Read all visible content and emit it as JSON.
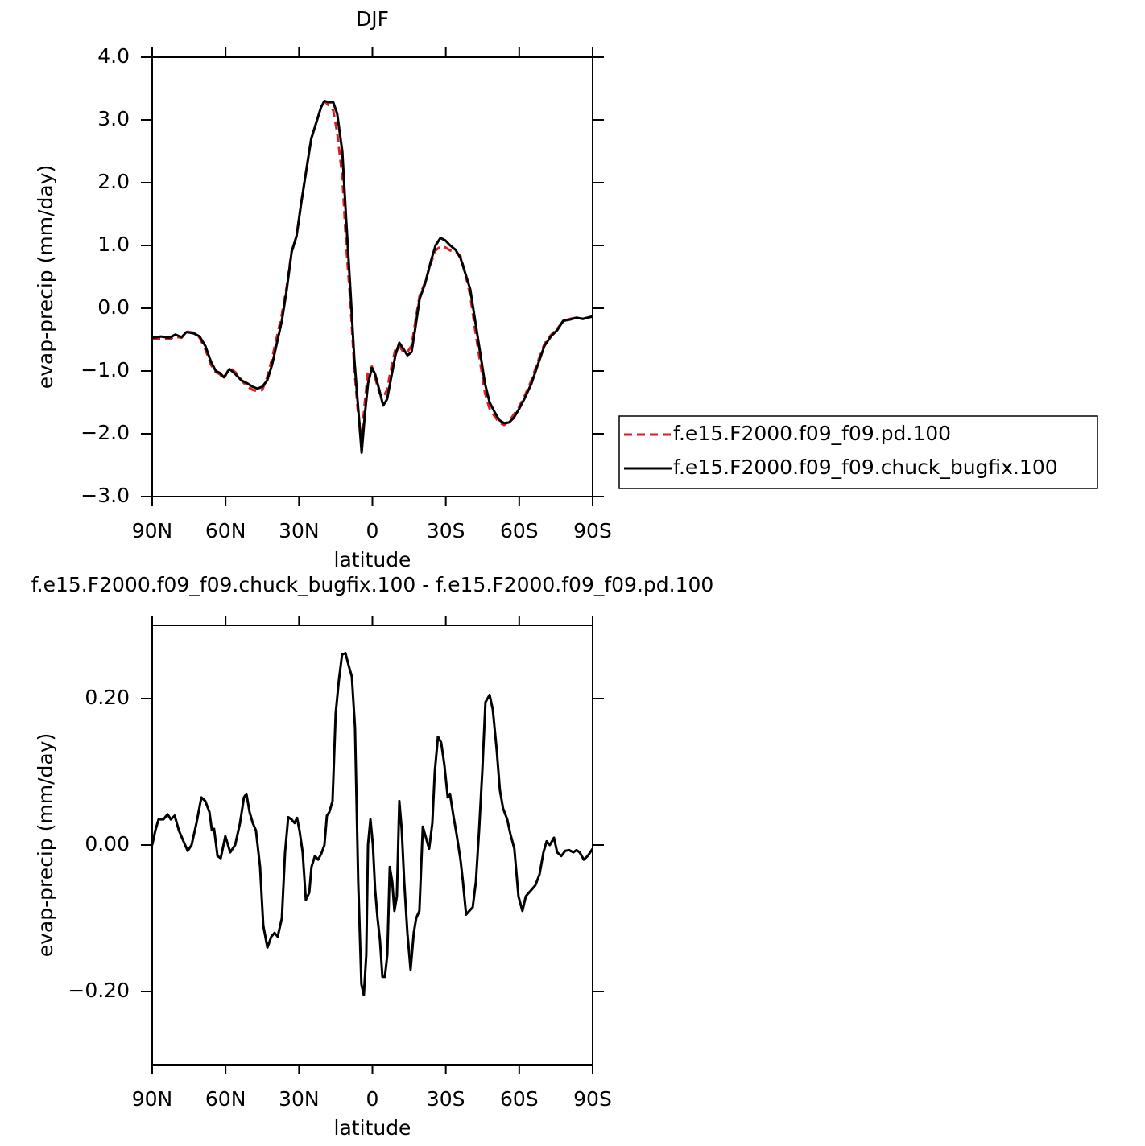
{
  "chart_data": [
    {
      "type": "line",
      "title": "DJF",
      "xlabel": "latitude",
      "ylabel": "evap-precip (mm/day)",
      "xlim": [
        90,
        -90
      ],
      "xticks": [
        {
          "value": 90,
          "label": "90N"
        },
        {
          "value": 60,
          "label": "60N"
        },
        {
          "value": 30,
          "label": "30N"
        },
        0,
        {
          "value": -30,
          "label": "30S"
        },
        {
          "value": -60,
          "label": "60S"
        },
        {
          "value": -90,
          "label": "90S"
        }
      ],
      "ylim": [
        -3,
        4
      ],
      "yticks": [
        {
          "value": 4,
          "label": "4.0"
        },
        {
          "value": 3,
          "label": "3.0"
        },
        {
          "value": 2,
          "label": "2.0"
        },
        {
          "value": 1,
          "label": "1.0"
        },
        {
          "value": 0,
          "label": "0.0"
        },
        {
          "value": -1,
          "label": "−1.0"
        },
        {
          "value": -2,
          "label": "−2.0"
        },
        {
          "value": -3,
          "label": "−3.0"
        }
      ],
      "legend": "right",
      "x": [
        90,
        86.4,
        83,
        80.5,
        78,
        76,
        73,
        70.6,
        68.3,
        66,
        64,
        62.4,
        60.7,
        58.4,
        56,
        53.5,
        51,
        49,
        47,
        45,
        43,
        41,
        39,
        37,
        35,
        33,
        31,
        29,
        27,
        25,
        23,
        21,
        19.6,
        17.6,
        16,
        14.4,
        12.3,
        10.7,
        9,
        7.4,
        5.8,
        4.4,
        3.1,
        1.8,
        0.2,
        -1.1,
        -2.8,
        -4.4,
        -6,
        -7.7,
        -9.4,
        -11,
        -12.7,
        -14.3,
        -16,
        -17.6,
        -19.3,
        -21.6,
        -23.9,
        -25.8,
        -27.8,
        -29.8,
        -31.8,
        -34,
        -36,
        -38,
        -40,
        -42,
        -44,
        -46,
        -47.9,
        -49.9,
        -51.8,
        -53.8,
        -55.8,
        -57.7,
        -60,
        -62.4,
        -65,
        -67.6,
        -70.3,
        -72.9,
        -75.5,
        -78,
        -80.8,
        -83.4,
        -86,
        -90
      ],
      "series": [
        {
          "name": "f.e15.F2000.f09_f09.pd.100",
          "color": "#e41a1c",
          "dashed": true,
          "values": [
            -0.48,
            -0.48,
            -0.49,
            -0.45,
            -0.47,
            -0.37,
            -0.39,
            -0.47,
            -0.65,
            -0.9,
            -1.02,
            -1.05,
            -1.12,
            -0.95,
            -1.02,
            -1.15,
            -1.25,
            -1.3,
            -1.32,
            -1.3,
            -1.1,
            -0.8,
            -0.45,
            -0.1,
            0.35,
            0.9,
            1.15,
            1.7,
            2.2,
            2.7,
            2.95,
            3.2,
            3.3,
            3.22,
            3.15,
            2.8,
            2.1,
            1.0,
            0.1,
            -0.95,
            -1.7,
            -2.05,
            -1.5,
            -1.0,
            -0.93,
            -1.1,
            -1.35,
            -1.42,
            -1.3,
            -0.95,
            -0.65,
            -0.6,
            -0.7,
            -0.7,
            -0.6,
            -0.2,
            0.2,
            0.42,
            0.72,
            0.92,
            0.98,
            0.97,
            0.92,
            0.9,
            0.83,
            0.55,
            0.2,
            -0.35,
            -0.85,
            -1.35,
            -1.6,
            -1.72,
            -1.82,
            -1.86,
            -1.8,
            -1.7,
            -1.57,
            -1.38,
            -1.15,
            -0.85,
            -0.57,
            -0.43,
            -0.33,
            -0.2,
            -0.17,
            -0.15,
            -0.17,
            -0.13
          ]
        },
        {
          "name": "f.e15.F2000.f09_f09.chuck_bugfix.100",
          "color": "#000000",
          "dashed": false,
          "values": [
            -0.47,
            -0.45,
            -0.47,
            -0.42,
            -0.46,
            -0.38,
            -0.4,
            -0.45,
            -0.6,
            -0.85,
            -1.0,
            -1.03,
            -1.1,
            -0.97,
            -1.05,
            -1.15,
            -1.2,
            -1.25,
            -1.28,
            -1.25,
            -1.15,
            -0.9,
            -0.55,
            -0.2,
            0.3,
            0.9,
            1.15,
            1.7,
            2.2,
            2.7,
            2.95,
            3.2,
            3.3,
            3.28,
            3.28,
            3.1,
            2.5,
            1.4,
            0.3,
            -0.8,
            -1.6,
            -2.3,
            -1.7,
            -1.2,
            -0.95,
            -1.05,
            -1.3,
            -1.55,
            -1.45,
            -1.1,
            -0.75,
            -0.55,
            -0.65,
            -0.75,
            -0.7,
            -0.3,
            0.15,
            0.4,
            0.75,
            1.0,
            1.12,
            1.08,
            1.0,
            0.93,
            0.8,
            0.55,
            0.3,
            -0.2,
            -0.7,
            -1.2,
            -1.5,
            -1.65,
            -1.78,
            -1.83,
            -1.82,
            -1.75,
            -1.6,
            -1.42,
            -1.2,
            -0.9,
            -0.6,
            -0.45,
            -0.35,
            -0.2,
            -0.18,
            -0.15,
            -0.17,
            -0.13
          ]
        }
      ]
    },
    {
      "type": "line",
      "title": "f.e15.F2000.f09_f09.chuck_bugfix.100 - f.e15.F2000.f09_f09.pd.100",
      "xlabel": "latitude",
      "ylabel": "evap-precip (mm/day)",
      "xlim": [
        90,
        -90
      ],
      "xticks": [
        {
          "value": 90,
          "label": "90N"
        },
        {
          "value": 60,
          "label": "60N"
        },
        {
          "value": 30,
          "label": "30N"
        },
        0,
        {
          "value": -30,
          "label": "30S"
        },
        {
          "value": -60,
          "label": "60S"
        },
        {
          "value": -90,
          "label": "90S"
        }
      ],
      "ylim": [
        -0.3,
        0.3
      ],
      "yticks": [
        {
          "value": 0.2,
          "label": "0.20"
        },
        {
          "value": 0,
          "label": "0.00"
        },
        {
          "value": -0.2,
          "label": "−0.20"
        }
      ],
      "color": "#000000",
      "x": [
        90,
        88.7,
        87.4,
        85.4,
        83.7,
        82.4,
        80.8,
        79.1,
        77.2,
        75.5,
        73.9,
        71.9,
        69.9,
        68.3,
        66.6,
        65.6,
        64.7,
        63.3,
        62.0,
        60.1,
        58.1,
        56.1,
        54.1,
        52.5,
        51.5,
        50.2,
        48.9,
        47.6,
        45.9,
        44.6,
        42.9,
        41.3,
        40.0,
        38.7,
        37.0,
        35.7,
        34.4,
        33.1,
        31.8,
        30.8,
        29.8,
        28.5,
        27.2,
        25.8,
        24.9,
        23.5,
        22.2,
        20.9,
        19.6,
        18.6,
        17.6,
        16.3,
        15.0,
        13.7,
        12.4,
        11.0,
        9.7,
        8.4,
        7.1,
        5.8,
        4.5,
        3.5,
        2.5,
        1.8,
        0.8,
        -0.2,
        -1.1,
        -2.1,
        -3.1,
        -4.1,
        -5.1,
        -6.1,
        -7.1,
        -8.1,
        -9.0,
        -10.0,
        -11.0,
        -12.0,
        -13.0,
        -14.3,
        -15.6,
        -16.9,
        -17.9,
        -19.2,
        -20.6,
        -21.9,
        -23.2,
        -24.5,
        -25.5,
        -26.8,
        -28.1,
        -29.4,
        -30.8,
        -31.7,
        -33.1,
        -34.4,
        -36.0,
        -37.0,
        -38.3,
        -39.6,
        -41.0,
        -42.3,
        -43.6,
        -44.9,
        -46.2,
        -47.9,
        -49.2,
        -50.8,
        -52.1,
        -53.4,
        -55.1,
        -56.4,
        -58.0,
        -59.7,
        -61.3,
        -62.7,
        -64.0,
        -65.3,
        -66.6,
        -68.3,
        -69.9,
        -71.2,
        -72.5,
        -74.2,
        -75.5,
        -77.2,
        -78.8,
        -80.4,
        -82.1,
        -83.4,
        -84.7,
        -86.4,
        -88.0,
        -90
      ],
      "values": [
        0.0,
        0.02,
        0.035,
        0.035,
        0.042,
        0.035,
        0.04,
        0.02,
        0.005,
        -0.008,
        0.0,
        0.03,
        0.065,
        0.06,
        0.045,
        0.02,
        0.022,
        -0.015,
        -0.018,
        0.012,
        -0.01,
        0.0,
        0.03,
        0.065,
        0.07,
        0.045,
        0.03,
        0.02,
        -0.03,
        -0.11,
        -0.14,
        -0.125,
        -0.12,
        -0.125,
        -0.1,
        -0.01,
        0.038,
        0.035,
        0.03,
        0.037,
        0.02,
        -0.01,
        -0.075,
        -0.065,
        -0.03,
        -0.015,
        -0.02,
        -0.012,
        0.0,
        0.04,
        0.045,
        0.06,
        0.18,
        0.225,
        0.26,
        0.262,
        0.245,
        0.23,
        0.16,
        -0.05,
        -0.19,
        -0.205,
        -0.15,
        0.0,
        0.035,
        0.0,
        -0.06,
        -0.1,
        -0.13,
        -0.18,
        -0.18,
        -0.15,
        -0.03,
        -0.05,
        -0.09,
        -0.07,
        0.06,
        0.02,
        -0.05,
        -0.12,
        -0.17,
        -0.12,
        -0.1,
        -0.09,
        0.025,
        0.01,
        -0.005,
        0.03,
        0.1,
        0.148,
        0.14,
        0.11,
        0.065,
        0.07,
        0.04,
        0.015,
        -0.02,
        -0.05,
        -0.095,
        -0.09,
        -0.085,
        -0.05,
        0.02,
        0.1,
        0.195,
        0.205,
        0.185,
        0.13,
        0.075,
        0.05,
        0.035,
        0.015,
        -0.005,
        -0.07,
        -0.09,
        -0.07,
        -0.065,
        -0.06,
        -0.055,
        -0.04,
        -0.01,
        0.005,
        0.0,
        0.01,
        -0.01,
        -0.015,
        -0.008,
        -0.007,
        -0.01,
        -0.007,
        -0.01,
        -0.02,
        -0.015,
        -0.005
      ]
    }
  ]
}
